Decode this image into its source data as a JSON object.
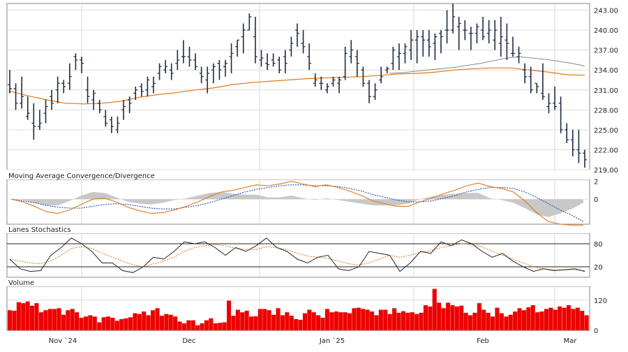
{
  "chart_data": {
    "type": "stock-panels",
    "x_month_labels": [
      "Nov `24",
      "Dec",
      "Jan `25",
      "Feb",
      "Mar"
    ],
    "price": {
      "type": "ohlc-bar",
      "y_ticks": [
        219.0,
        222.0,
        225.0,
        228.0,
        231.0,
        234.0,
        237.0,
        240.0,
        243.0
      ],
      "ylim": [
        219.0,
        244.0
      ],
      "bars": [
        [
          231.8,
          234.0,
          230.5,
          231.2
        ],
        [
          231.2,
          232.0,
          228.0,
          229.0
        ],
        [
          229.0,
          233.0,
          228.2,
          230.0
        ],
        [
          227.0,
          230.0,
          226.5,
          227.5
        ],
        [
          226.0,
          229.0,
          223.5,
          225.5
        ],
        [
          225.5,
          228.0,
          225.0,
          226.0
        ],
        [
          227.5,
          229.5,
          226.0,
          228.5
        ],
        [
          230.0,
          231.0,
          228.0,
          229.0
        ],
        [
          231.0,
          233.0,
          229.0,
          232.0
        ],
        [
          232.0,
          232.5,
          230.5,
          231.5
        ],
        [
          232.0,
          235.0,
          231.0,
          233.0
        ],
        [
          236.0,
          236.5,
          234.0,
          235.5
        ],
        [
          235.5,
          236.0,
          233.5,
          235.0
        ],
        [
          231.0,
          233.0,
          229.0,
          230.0
        ],
        [
          229.5,
          231.0,
          228.0,
          230.5
        ],
        [
          229.0,
          229.5,
          227.5,
          228.0
        ],
        [
          227.0,
          228.0,
          225.5,
          226.0
        ],
        [
          226.5,
          227.0,
          224.5,
          225.5
        ],
        [
          225.0,
          227.0,
          224.5,
          226.0
        ],
        [
          228.0,
          229.5,
          226.5,
          228.5
        ],
        [
          229.5,
          230.0,
          227.5,
          229.0
        ],
        [
          230.5,
          231.5,
          229.5,
          231.0
        ],
        [
          231.5,
          232.0,
          230.0,
          230.8
        ],
        [
          231.0,
          233.0,
          230.0,
          232.5
        ],
        [
          231.5,
          233.0,
          230.5,
          232.0
        ],
        [
          233.5,
          235.0,
          232.5,
          234.5
        ],
        [
          234.0,
          235.5,
          233.5,
          234.5
        ],
        [
          234.0,
          235.0,
          232.5,
          233.5
        ],
        [
          235.0,
          237.0,
          234.0,
          235.5
        ],
        [
          236.0,
          238.5,
          235.0,
          236.0
        ],
        [
          236.0,
          237.5,
          234.5,
          235.5
        ],
        [
          235.5,
          236.5,
          234.0,
          234.5
        ],
        [
          233.5,
          234.5,
          232.0,
          233.0
        ],
        [
          232.5,
          234.5,
          230.5,
          233.5
        ],
        [
          234.0,
          235.0,
          232.0,
          234.5
        ],
        [
          235.0,
          235.5,
          232.5,
          234.0
        ],
        [
          234.5,
          235.5,
          233.0,
          235.0
        ],
        [
          236.0,
          238.0,
          233.5,
          236.5
        ],
        [
          237.5,
          238.5,
          236.0,
          238.5
        ],
        [
          239.0,
          241.0,
          236.5,
          240.0
        ],
        [
          240.0,
          242.5,
          240.0,
          242.0
        ],
        [
          239.0,
          242.0,
          235.0,
          236.0
        ],
        [
          235.5,
          237.0,
          234.5,
          235.8
        ],
        [
          235.0,
          236.5,
          234.0,
          234.8
        ],
        [
          235.5,
          236.5,
          234.5,
          235.0
        ],
        [
          235.5,
          236.0,
          233.5,
          234.0
        ],
        [
          236.0,
          237.0,
          233.5,
          235.0
        ],
        [
          237.0,
          239.0,
          236.0,
          238.0
        ],
        [
          240.0,
          241.0,
          237.5,
          239.5
        ],
        [
          238.0,
          240.0,
          236.5,
          237.5
        ],
        [
          236.0,
          238.0,
          234.0,
          235.0
        ],
        [
          232.0,
          233.5,
          231.5,
          232.5
        ],
        [
          232.0,
          233.0,
          231.0,
          232.0
        ],
        [
          231.0,
          232.0,
          230.5,
          231.5
        ],
        [
          232.0,
          233.0,
          231.5,
          232.5
        ],
        [
          232.0,
          233.0,
          230.5,
          232.5
        ],
        [
          233.0,
          237.5,
          232.5,
          236.5
        ],
        [
          236.0,
          238.5,
          235.0,
          237.0
        ],
        [
          236.0,
          237.0,
          233.0,
          235.0
        ],
        [
          234.0,
          234.5,
          231.5,
          232.0
        ],
        [
          232.0,
          232.5,
          229.0,
          230.0
        ],
        [
          230.0,
          232.0,
          229.5,
          231.0
        ],
        [
          232.5,
          234.5,
          232.0,
          233.0
        ],
        [
          234.0,
          234.5,
          233.5,
          234.2
        ],
        [
          235.0,
          237.5,
          234.0,
          237.0
        ],
        [
          236.0,
          238.0,
          234.0,
          236.5
        ],
        [
          236.5,
          238.0,
          235.0,
          237.5
        ],
        [
          237.0,
          240.0,
          235.5,
          238.5
        ],
        [
          238.5,
          240.0,
          235.0,
          239.0
        ],
        [
          239.0,
          240.0,
          236.0,
          238.5
        ],
        [
          238.5,
          240.0,
          236.0,
          237.5
        ],
        [
          238.0,
          239.5,
          235.5,
          239.0
        ],
        [
          239.5,
          240.0,
          236.5,
          239.0
        ],
        [
          240.0,
          243.0,
          238.0,
          240.0
        ],
        [
          240.0,
          244.0,
          239.5,
          242.0
        ],
        [
          240.5,
          242.0,
          237.0,
          241.0
        ],
        [
          240.0,
          241.5,
          238.5,
          240.0
        ],
        [
          239.5,
          240.5,
          237.0,
          239.5
        ],
        [
          239.5,
          241.0,
          238.0,
          240.5
        ],
        [
          240.0,
          242.0,
          238.5,
          239.0
        ],
        [
          239.5,
          241.5,
          238.0,
          240.0
        ],
        [
          238.5,
          241.5,
          237.0,
          240.0
        ],
        [
          238.0,
          242.0,
          236.0,
          239.0
        ],
        [
          238.5,
          241.0,
          235.5,
          238.0
        ],
        [
          236.5,
          239.0,
          236.0,
          236.5
        ],
        [
          236.0,
          237.5,
          235.0,
          236.5
        ],
        [
          234.0,
          235.0,
          232.0,
          233.0
        ],
        [
          233.0,
          234.5,
          230.5,
          231.0
        ],
        [
          232.0,
          232.0,
          230.5,
          231.5
        ],
        [
          230.5,
          235.0,
          229.5,
          230.0
        ],
        [
          228.5,
          230.5,
          227.5,
          229.0
        ],
        [
          229.0,
          231.5,
          228.0,
          228.5
        ],
        [
          229.0,
          230.0,
          224.5,
          225.0
        ],
        [
          225.0,
          226.0,
          223.0,
          223.5
        ],
        [
          223.5,
          225.0,
          221.0,
          222.0
        ],
        [
          222.0,
          225.0,
          220.0,
          221.5
        ],
        [
          221.5,
          222.0,
          219.3,
          220.5
        ]
      ]
    },
    "price_ma": {
      "ma_short": {
        "color": "#888888",
        "values": [
          233.5,
          233.6,
          233.8,
          234.0,
          234.2,
          234.4,
          234.7,
          235.0,
          235.4,
          235.8,
          236.0,
          235.8,
          235.6,
          235.3,
          235.0,
          234.6
        ]
      },
      "ma_long": {
        "color": "#e07818",
        "values": [
          230.8,
          230.1,
          229.5,
          229.0,
          228.9,
          229.0,
          229.3,
          229.9,
          230.3,
          230.6,
          231.0,
          231.3,
          231.8,
          232.1,
          232.3,
          232.5,
          232.7,
          232.8,
          232.9,
          233.0,
          233.2,
          233.4,
          233.5,
          233.7,
          234.0,
          234.2,
          234.3,
          234.3,
          234.0,
          233.7,
          233.3,
          233.2
        ]
      }
    },
    "macd": {
      "title": "Moving Average Convergence/Divergence",
      "y_ticks": [
        2,
        0
      ],
      "ylim": [
        -2.8,
        2.2
      ],
      "macd_line": {
        "color": "#e07818",
        "values": [
          0,
          -0.3,
          -0.8,
          -1.4,
          -1.6,
          -1.2,
          -0.6,
          0.0,
          0.1,
          -0.3,
          -0.9,
          -1.3,
          -1.6,
          -1.5,
          -1.2,
          -0.8,
          -0.3,
          0.3,
          0.8,
          1.0,
          1.3,
          1.6,
          1.5,
          1.7,
          2.0,
          1.7,
          1.4,
          1.6,
          1.3,
          0.9,
          0.4,
          -0.2,
          -0.5,
          -0.8,
          -0.8,
          -0.3,
          0.1,
          0.6,
          1.0,
          1.5,
          1.8,
          1.4,
          1.2,
          0.8,
          -0.2,
          -1.5,
          -2.5,
          -2.8,
          -2.9,
          -2.9
        ]
      },
      "signal_line": {
        "color": "#2050b0",
        "values": [
          0,
          -0.2,
          -0.4,
          -0.7,
          -0.9,
          -1.0,
          -1.0,
          -0.8,
          -0.6,
          -0.5,
          -0.6,
          -0.8,
          -1.0,
          -1.1,
          -1.1,
          -0.9,
          -0.7,
          -0.4,
          0.0,
          0.4,
          0.8,
          1.1,
          1.3,
          1.5,
          1.6,
          1.6,
          1.5,
          1.5,
          1.4,
          1.2,
          0.9,
          0.5,
          0.2,
          -0.1,
          -0.3,
          -0.3,
          -0.2,
          0.1,
          0.4,
          0.8,
          1.1,
          1.3,
          1.3,
          1.2,
          0.8,
          0.2,
          -0.5,
          -1.2,
          -1.8,
          -2.5
        ]
      },
      "histogram_color": "#c8c8c8"
    },
    "stochastics": {
      "title": "Lanes Stochastics",
      "y_ticks": [
        80,
        20
      ],
      "ylim": [
        0,
        100
      ],
      "ref_lines": [
        80,
        20
      ],
      "k_line": {
        "color": "#222222",
        "values": [
          40,
          15,
          8,
          10,
          50,
          70,
          95,
          80,
          60,
          30,
          30,
          10,
          5,
          20,
          45,
          40,
          60,
          85,
          80,
          85,
          70,
          50,
          70,
          60,
          75,
          95,
          70,
          60,
          40,
          30,
          45,
          50,
          15,
          10,
          20,
          60,
          55,
          50,
          8,
          30,
          60,
          55,
          85,
          75,
          90,
          80,
          60,
          45,
          55,
          35,
          20,
          8,
          15,
          10,
          12,
          15,
          8
        ]
      },
      "d_line": {
        "color": "#e07818",
        "values": [
          40,
          35,
          30,
          28,
          35,
          50,
          68,
          72,
          68,
          55,
          45,
          35,
          25,
          20,
          28,
          35,
          45,
          60,
          70,
          75,
          78,
          75,
          68,
          65,
          65,
          72,
          70,
          65,
          55,
          48,
          45,
          42,
          35,
          28,
          25,
          30,
          40,
          50,
          45,
          50,
          58,
          62,
          70,
          75,
          80,
          78,
          72,
          60,
          50,
          40,
          30,
          20,
          15,
          12,
          12,
          12,
          10
        ]
      }
    },
    "volume": {
      "title": "Volume",
      "y_ticks": [
        120,
        0
      ],
      "ylim": [
        0,
        175
      ],
      "bar_color": "#ee0000",
      "values": [
        80,
        78,
        112,
        108,
        115,
        98,
        108,
        72,
        80,
        85,
        85,
        88,
        62,
        80,
        85,
        72,
        50,
        55,
        60,
        55,
        32,
        52,
        55,
        50,
        38,
        45,
        48,
        52,
        68,
        65,
        75,
        60,
        80,
        88,
        58,
        65,
        62,
        55,
        35,
        28,
        40,
        40,
        20,
        28,
        40,
        48,
        28,
        30,
        32,
        118,
        58,
        82,
        72,
        78,
        55,
        56,
        85,
        85,
        80,
        62,
        88,
        60,
        72,
        58,
        45,
        42,
        68,
        82,
        72,
        60,
        50,
        85,
        72,
        75,
        72,
        72,
        68,
        88,
        90,
        85,
        82,
        75,
        60,
        82,
        82,
        65,
        88,
        70,
        76,
        70,
        72,
        65,
        70,
        100,
        95,
        165,
        110,
        88,
        110,
        100,
        95,
        98,
        70,
        60,
        70,
        108,
        82,
        70,
        55,
        90,
        68,
        55,
        62,
        75,
        88,
        80,
        92,
        100,
        72,
        75,
        85,
        90,
        82,
        95,
        90,
        100,
        85,
        90,
        78,
        60
      ],
      "dark_band_after": 0
    }
  }
}
